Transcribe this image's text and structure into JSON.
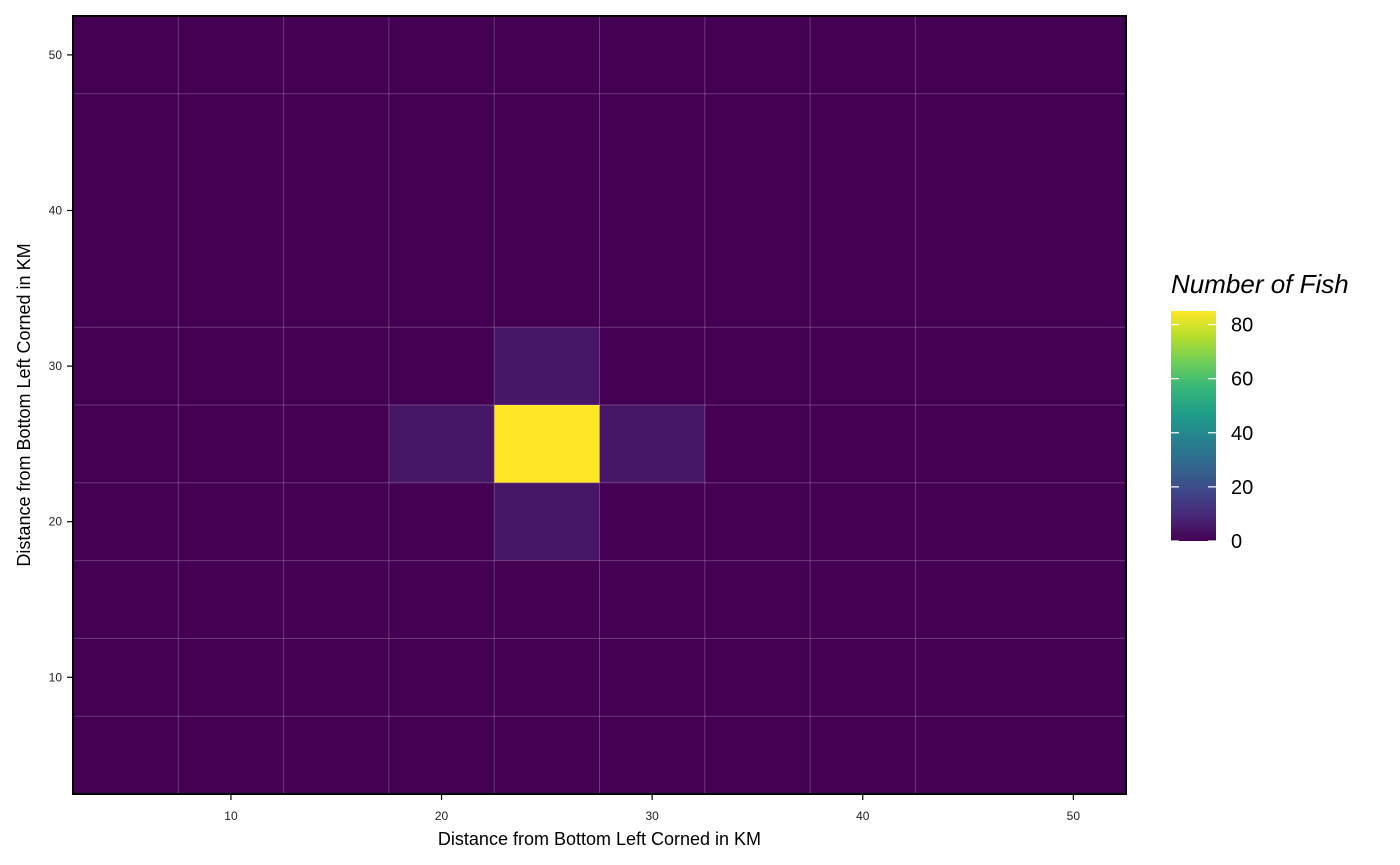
{
  "chart_data": {
    "type": "heatmap",
    "xlabel": "Distance from Bottom Left Corned in KM",
    "ylabel": "Distance from Bottom Left Corned in KM",
    "xlim": [
      2.5,
      52.5
    ],
    "ylim": [
      2.5,
      52.5
    ],
    "x_ticks": [
      10,
      20,
      30,
      40,
      50
    ],
    "y_ticks": [
      10,
      20,
      30,
      40,
      50
    ],
    "grid": true,
    "x_bin_edges": [
      2.5,
      7.5,
      12.5,
      17.5,
      22.5,
      27.5,
      32.5,
      37.5,
      42.5,
      52.5
    ],
    "y_bin_edges": [
      2.5,
      7.5,
      12.5,
      17.5,
      22.5,
      27.5,
      32.5,
      47.5,
      52.5
    ],
    "cells": [
      {
        "x": [
          22.5,
          27.5
        ],
        "y": [
          22.5,
          27.5
        ],
        "value": 85
      },
      {
        "x": [
          17.5,
          22.5
        ],
        "y": [
          22.5,
          27.5
        ],
        "value": 5
      },
      {
        "x": [
          27.5,
          32.5
        ],
        "y": [
          22.5,
          27.5
        ],
        "value": 5
      },
      {
        "x": [
          22.5,
          27.5
        ],
        "y": [
          27.5,
          32.5
        ],
        "value": 5
      },
      {
        "x": [
          22.5,
          27.5
        ],
        "y": [
          17.5,
          22.5
        ],
        "value": 5
      }
    ],
    "background_value": 0,
    "legend": {
      "title": "Number of Fish",
      "placement": "right",
      "ticks": [
        0,
        20,
        40,
        60,
        80
      ],
      "range": [
        0,
        85
      ]
    },
    "colorscale": [
      "#440154",
      "#482878",
      "#3e4989",
      "#31688e",
      "#26828e",
      "#1f9e89",
      "#35b779",
      "#6ece58",
      "#b5de2b",
      "#fde725"
    ]
  }
}
